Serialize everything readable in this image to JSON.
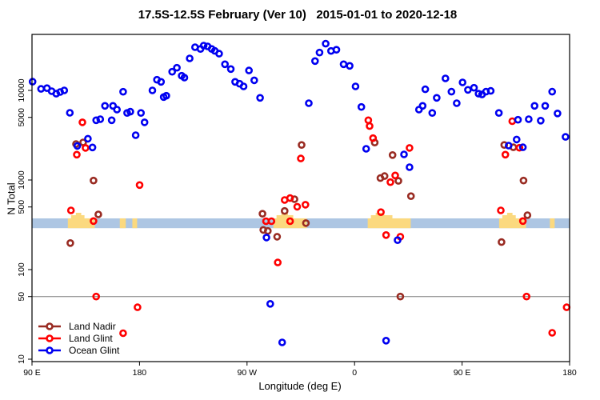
{
  "chart_data": {
    "type": "scatter",
    "title": "17.5S-12.5S February (Ver 10)   2015-01-01 to 2020-12-18",
    "xlabel": "Longitude (deg E)",
    "ylabel": "N Total",
    "x_axis": {
      "note": "x stored as degrees eastward from left plot edge (left edge = 90 E, wraps around globe)",
      "range_deg": [
        0,
        450
      ],
      "ticks": [
        {
          "deg": 0,
          "label": "90 E"
        },
        {
          "deg": 90,
          "label": "180"
        },
        {
          "deg": 180,
          "label": "90 W"
        },
        {
          "deg": 270,
          "label": "0"
        },
        {
          "deg": 360,
          "label": "90 E"
        },
        {
          "deg": 450,
          "label": "180"
        }
      ]
    },
    "y_axis": {
      "scale": "log10",
      "range": [
        9,
        42000
      ],
      "ticks": [
        10,
        50,
        100,
        500,
        1000,
        5000,
        10000
      ]
    },
    "reference_line": {
      "value": 50,
      "color": "#7f7f7f"
    },
    "highlight_band": {
      "value_range": [
        290,
        373
      ],
      "color": "#adc6e3",
      "patch_color": "#fbd97f",
      "patches_deg": [
        [
          30,
          52.5
        ],
        [
          73.5,
          78.5
        ],
        [
          84,
          88
        ],
        [
          202,
          230
        ],
        [
          281,
          317
        ],
        [
          391,
          413.5
        ],
        [
          433.5,
          437.5
        ]
      ]
    },
    "legend_position": "bottom-left",
    "grid": false,
    "series": [
      {
        "name": "Land Nadir",
        "color": "#992b22",
        "points": [
          [
            36.8,
            2520
          ],
          [
            42.8,
            2630
          ],
          [
            51.5,
            986
          ],
          [
            55.5,
            413
          ],
          [
            32.1,
            198
          ],
          [
            192.9,
            420
          ],
          [
            211.5,
            451
          ],
          [
            219.7,
            610
          ],
          [
            229.3,
            330
          ],
          [
            193.6,
            277
          ],
          [
            197.4,
            270
          ],
          [
            205.2,
            233
          ],
          [
            225.7,
            2460
          ],
          [
            286.9,
            2620
          ],
          [
            301.8,
            1900
          ],
          [
            291.6,
            1050
          ],
          [
            295.1,
            1105
          ],
          [
            306.7,
            977
          ],
          [
            317.2,
            660
          ],
          [
            308.3,
            50
          ],
          [
            395.3,
            2460
          ],
          [
            402.9,
            2320
          ],
          [
            411.4,
            986
          ],
          [
            414.7,
            405
          ],
          [
            393,
            203
          ]
        ]
      },
      {
        "name": "Land Glint",
        "color": "#ff0000",
        "points": [
          [
            42.2,
            4400
          ],
          [
            37.5,
            1920
          ],
          [
            44.8,
            2280
          ],
          [
            32.6,
            458
          ],
          [
            51.5,
            348
          ],
          [
            90.1,
            879
          ],
          [
            53.7,
            50
          ],
          [
            88.3,
            38
          ],
          [
            76.3,
            19.5
          ],
          [
            195.9,
            347
          ],
          [
            200.4,
            347
          ],
          [
            216,
            347
          ],
          [
            211.5,
            598
          ],
          [
            216,
            628
          ],
          [
            222,
            503
          ],
          [
            228.9,
            530
          ],
          [
            205.7,
            120
          ],
          [
            281.5,
            4640
          ],
          [
            282.6,
            4000
          ],
          [
            285.5,
            2930
          ],
          [
            316,
            2280
          ],
          [
            304,
            1125
          ],
          [
            300,
            946
          ],
          [
            292,
            438
          ],
          [
            296.4,
            243
          ],
          [
            308.3,
            233
          ],
          [
            225,
            1740
          ],
          [
            402,
            4530
          ],
          [
            408,
            2290
          ],
          [
            396.2,
            1920
          ],
          [
            392.4,
            458
          ],
          [
            410.9,
            348
          ],
          [
            414,
            50
          ],
          [
            447.5,
            38
          ],
          [
            435.4,
            19.7
          ]
        ]
      },
      {
        "name": "Ocean Glint",
        "color": "#0000f0",
        "points": [
          [
            0.5,
            12500
          ],
          [
            7.6,
            10400
          ],
          [
            12.5,
            10600
          ],
          [
            16.5,
            9800
          ],
          [
            20.3,
            9200
          ],
          [
            23.6,
            9600
          ],
          [
            27,
            10000
          ],
          [
            31.7,
            5620
          ],
          [
            37.9,
            2400
          ],
          [
            46.8,
            2890
          ],
          [
            50.6,
            2310
          ],
          [
            53.7,
            4640
          ],
          [
            57.1,
            4770
          ],
          [
            61.1,
            6730
          ],
          [
            66.7,
            4640
          ],
          [
            67.8,
            6730
          ],
          [
            71.1,
            6110
          ],
          [
            76.3,
            9660
          ],
          [
            79.6,
            5600
          ],
          [
            82.3,
            5790
          ],
          [
            86.8,
            3160
          ],
          [
            91.2,
            5600
          ],
          [
            94.2,
            4400
          ],
          [
            100.8,
            10000
          ],
          [
            104.6,
            13150
          ],
          [
            108,
            12460
          ],
          [
            110.2,
            8430
          ],
          [
            112.4,
            8710
          ],
          [
            117.3,
            16150
          ],
          [
            121.3,
            17900
          ],
          [
            125.3,
            14560
          ],
          [
            127.6,
            13900
          ],
          [
            132,
            22750
          ],
          [
            136.5,
            30340
          ],
          [
            141,
            29000
          ],
          [
            143.7,
            31600
          ],
          [
            147,
            31000
          ],
          [
            150.4,
            29000
          ],
          [
            153,
            27600
          ],
          [
            156.6,
            25700
          ],
          [
            161.5,
            19600
          ],
          [
            166.4,
            17300
          ],
          [
            170,
            12460
          ],
          [
            173.8,
            11870
          ],
          [
            177.1,
            11080
          ],
          [
            181.6,
            16700
          ],
          [
            186,
            12970
          ],
          [
            190.9,
            8260
          ],
          [
            196.3,
            228
          ],
          [
            199.4,
            41.5
          ],
          [
            209.4,
            15.4
          ],
          [
            231.7,
            7200
          ],
          [
            236.9,
            21270
          ],
          [
            240.7,
            26450
          ],
          [
            245.8,
            33200
          ],
          [
            250.3,
            27560
          ],
          [
            254.8,
            28440
          ],
          [
            260.8,
            19600
          ],
          [
            265.9,
            18800
          ],
          [
            270.8,
            11080
          ],
          [
            275.7,
            6530
          ],
          [
            279.7,
            2230
          ],
          [
            306,
            213
          ],
          [
            296.4,
            16.1
          ],
          [
            311.4,
            1930
          ],
          [
            316,
            1390
          ],
          [
            323.9,
            6100
          ],
          [
            327,
            6730
          ],
          [
            329.2,
            10300
          ],
          [
            335,
            5600
          ],
          [
            338.8,
            8260
          ],
          [
            346.1,
            13610
          ],
          [
            351.1,
            9670
          ],
          [
            355.5,
            7200
          ],
          [
            360.4,
            12290
          ],
          [
            364.9,
            10140
          ],
          [
            370,
            10700
          ],
          [
            373.8,
            9200
          ],
          [
            376.7,
            9000
          ],
          [
            380,
            9670
          ],
          [
            384,
            9880
          ],
          [
            390.8,
            5600
          ],
          [
            406.8,
            4700
          ],
          [
            415.8,
            4770
          ],
          [
            420.7,
            6730
          ],
          [
            425.8,
            4600
          ],
          [
            429.6,
            6730
          ],
          [
            435.4,
            9670
          ],
          [
            439.9,
            5530
          ],
          [
            446.6,
            3030
          ],
          [
            405.7,
            2830
          ],
          [
            399,
            2420
          ],
          [
            410.9,
            2320
          ]
        ]
      }
    ]
  }
}
